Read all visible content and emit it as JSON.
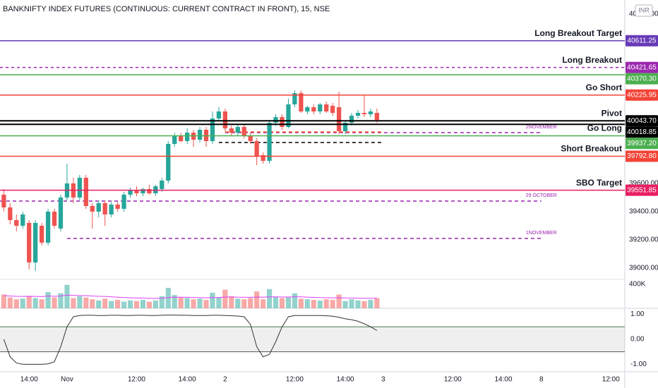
{
  "chart_data": [
    {
      "type": "candlestick",
      "title": "BANKNIFTY INDEX FUTURES (CONTINUOUS: CURRENT CONTRACT IN FRONT), 15, NSE",
      "currency": "INR",
      "up_color": "#26a69a",
      "down_color": "#ef5350",
      "xlim": [
        -0.6,
        98.2
      ],
      "ylim": [
        38925,
        40900
      ],
      "yticks": [
        {
          "value": 39000,
          "label": "39000.00"
        },
        {
          "value": 39200,
          "label": "39200.00"
        },
        {
          "value": 39400,
          "label": "39400.00"
        },
        {
          "value": 39600,
          "label": "39600.00"
        },
        {
          "value": 40800,
          "label": "40800.00"
        }
      ],
      "open": [
        39520,
        39430,
        39340,
        39300,
        39320,
        39040,
        39300,
        39180,
        39400,
        39280,
        39500,
        39600,
        39500,
        39640,
        39440,
        39400,
        39460,
        39380,
        39450,
        39420,
        39520,
        39550,
        39530,
        39560,
        39530,
        39560,
        39620,
        39880,
        39940,
        39900,
        39960,
        39910,
        39980,
        39900,
        40060,
        40110,
        39990,
        39960,
        40000,
        39940,
        39900,
        39800,
        39760,
        40030,
        40070,
        40000,
        40160,
        40240,
        40110,
        40140,
        40110,
        40160,
        40150,
        40140,
        39970,
        40030,
        40080,
        40100,
        40090,
        40100
      ],
      "high": [
        39560,
        39460,
        39380,
        39400,
        39340,
        39340,
        39320,
        39420,
        39420,
        39520,
        39740,
        39640,
        39660,
        39660,
        39460,
        39480,
        39480,
        39470,
        39470,
        39540,
        39570,
        39580,
        39570,
        39590,
        39590,
        39640,
        39900,
        39960,
        39960,
        39990,
        39980,
        40000,
        40000,
        40110,
        40140,
        40130,
        40010,
        40020,
        40020,
        39960,
        39920,
        39820,
        40050,
        40090,
        40090,
        40200,
        40260,
        40260,
        40150,
        40160,
        40170,
        40180,
        40170,
        40250,
        40050,
        40100,
        40120,
        40230,
        40130,
        40130
      ],
      "low": [
        39400,
        39310,
        39260,
        39280,
        38990,
        38980,
        39160,
        39160,
        39280,
        39260,
        39480,
        39460,
        39480,
        39420,
        39280,
        39360,
        39300,
        39360,
        39400,
        39400,
        39500,
        39510,
        39510,
        39520,
        39510,
        39540,
        39600,
        39860,
        39890,
        39880,
        39860,
        39890,
        39860,
        39880,
        40040,
        39970,
        39940,
        39940,
        39920,
        39880,
        39730,
        39740,
        39740,
        40010,
        39980,
        39990,
        40140,
        40100,
        40090,
        40090,
        40090,
        40100,
        40080,
        39950,
        39950,
        40010,
        40060,
        40070,
        40070,
        40030
      ],
      "close": [
        39430,
        39340,
        39300,
        39380,
        39040,
        39320,
        39180,
        39400,
        39300,
        39500,
        39600,
        39500,
        39640,
        39440,
        39400,
        39460,
        39380,
        39450,
        39420,
        39520,
        39550,
        39530,
        39560,
        39530,
        39580,
        39620,
        39880,
        39940,
        39900,
        39960,
        39910,
        39980,
        39900,
        40060,
        40110,
        39990,
        39960,
        40000,
        39940,
        39900,
        39790,
        39760,
        40030,
        40070,
        40000,
        40160,
        40240,
        40110,
        40140,
        40110,
        40160,
        40110,
        40100,
        39970,
        40030,
        40080,
        40100,
        40090,
        40110,
        40050
      ],
      "levels": [
        {
          "label": "Long Breakout Target",
          "value": 40611.25,
          "color": "#673ab7",
          "style": "solid"
        },
        {
          "label": "Long Breakout",
          "value": 40421.65,
          "color": "#9c27b0",
          "style": "dashed"
        },
        {
          "value": 40370.3,
          "value_label": "40370.30",
          "color": "#4caf50",
          "style": "solid"
        },
        {
          "label": "Go Short",
          "value": 40225.95,
          "color": "#f44336",
          "style": "solid"
        },
        {
          "label": "Pivot",
          "value": 40043.7,
          "value_label": "40043.70",
          "color": "#000000",
          "style": "solid"
        },
        {
          "value": 40018.85,
          "color": "#000000",
          "style": "solid"
        },
        {
          "label": "Go Long",
          "value": 39937.2,
          "value_label": "39937.20",
          "color": "#4caf50",
          "style": "solid"
        },
        {
          "label": "Short Breakout",
          "value": 39792.8,
          "value_label": "39792.80",
          "color": "#f44336",
          "style": "solid"
        },
        {
          "label": "SBO Target",
          "value": 39551.85,
          "color": "#e91e63",
          "style": "solid"
        }
      ],
      "annotations": [
        {
          "text": "2NOVEMBER",
          "value": 39960,
          "start": 35,
          "end": 85,
          "color": "#9c27b0"
        },
        {
          "text": "29 OCTOBER",
          "value": 39475,
          "start": -0.6,
          "end": 85,
          "color": "#9c27b0"
        },
        {
          "text": "1NOVEMBER",
          "value": 39210,
          "start": 10,
          "end": 85,
          "color": "#9c27b0"
        },
        {
          "value": 39965,
          "start": 35,
          "end": 60,
          "color": "#ff5722"
        },
        {
          "value": 39890,
          "start": 34,
          "end": 60,
          "color": "#000000"
        }
      ]
    },
    {
      "type": "bar",
      "ylim": [
        0,
        470000
      ],
      "yticks": [
        {
          "value": 400000,
          "label": "400K"
        }
      ],
      "ma_color": "#e040fb",
      "values": [
        230000,
        180000,
        150000,
        160000,
        200000,
        170000,
        150000,
        270000,
        180000,
        250000,
        390000,
        170000,
        200000,
        180000,
        150000,
        130000,
        160000,
        120000,
        140000,
        110000,
        130000,
        120000,
        140000,
        110000,
        130000,
        200000,
        340000,
        220000,
        180000,
        170000,
        150000,
        160000,
        140000,
        260000,
        180000,
        310000,
        200000,
        160000,
        150000,
        170000,
        280000,
        150000,
        320000,
        190000,
        170000,
        180000,
        250000,
        160000,
        150000,
        140000,
        130000,
        150000,
        140000,
        230000,
        120000,
        150000,
        130000,
        120000,
        140000,
        170000
      ],
      "ma": [
        210000,
        205000,
        200000,
        198000,
        200000,
        198000,
        195000,
        205000,
        200000,
        205000,
        220000,
        215000,
        212000,
        210000,
        205000,
        200000,
        198000,
        190000,
        185000,
        180000,
        175000,
        172000,
        170000,
        165000,
        165000,
        168000,
        180000,
        185000,
        185000,
        183000,
        180000,
        178000,
        175000,
        180000,
        180000,
        188000,
        188000,
        185000,
        183000,
        182000,
        188000,
        185000,
        192000,
        190000,
        188000,
        188000,
        192000,
        190000,
        186000,
        182000,
        178000,
        176000,
        174000,
        176000,
        172000,
        170000,
        168000,
        166000,
        166000,
        168000
      ]
    },
    {
      "type": "line",
      "ylim": [
        -1.3,
        1.24
      ],
      "yticks": [
        {
          "value": 1,
          "label": "1.00"
        },
        {
          "value": 0,
          "label": "0.00"
        },
        {
          "value": -1,
          "label": "-1.00"
        }
      ],
      "bands": [
        0.5,
        -0.5
      ],
      "color": "#333333",
      "values": [
        0.0,
        -0.7,
        -0.95,
        -1.0,
        -1.0,
        -1.0,
        -1.0,
        -0.98,
        -0.9,
        -0.3,
        0.5,
        0.9,
        0.95,
        0.96,
        0.96,
        0.95,
        0.95,
        0.96,
        0.96,
        0.95,
        0.95,
        0.96,
        0.96,
        0.95,
        0.95,
        0.96,
        0.97,
        0.97,
        0.96,
        0.96,
        0.95,
        0.95,
        0.95,
        0.96,
        0.96,
        0.95,
        0.94,
        0.93,
        0.9,
        0.6,
        -0.3,
        -0.7,
        -0.6,
        -0.1,
        0.5,
        0.9,
        0.95,
        0.95,
        0.95,
        0.95,
        0.95,
        0.94,
        0.92,
        0.88,
        0.82,
        0.78,
        0.72,
        0.62,
        0.5,
        0.35
      ],
      "xticks": [
        {
          "value": 4,
          "label": "14:00"
        },
        {
          "value": 10,
          "label": "Nov"
        },
        {
          "value": 21,
          "label": "12:00"
        },
        {
          "value": 29,
          "label": "14:00"
        },
        {
          "value": 35,
          "label": "2"
        },
        {
          "value": 46,
          "label": "12:00"
        },
        {
          "value": 54,
          "label": "14:00"
        },
        {
          "value": 60,
          "label": "3"
        },
        {
          "value": 71,
          "label": "12:00"
        },
        {
          "value": 79,
          "label": "14:00"
        },
        {
          "value": 85,
          "label": "8"
        },
        {
          "value": 96,
          "label": "12:00"
        }
      ]
    }
  ]
}
